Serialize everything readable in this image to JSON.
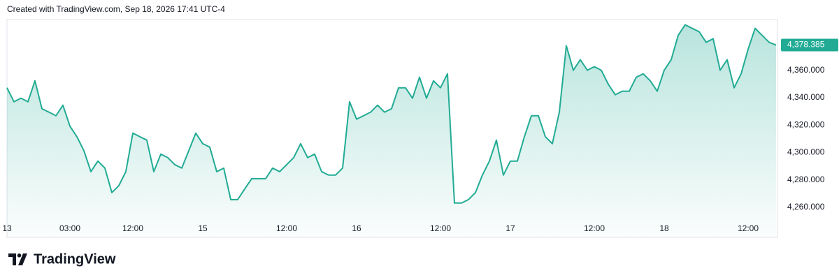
{
  "chart_data": {
    "type": "line",
    "title": "Created with TradingView.com, Sep 18, 2026 17:41 UTC-4",
    "categories": [
      "13",
      null,
      null,
      null,
      null,
      null,
      null,
      null,
      null,
      "03:00",
      null,
      null,
      null,
      null,
      null,
      null,
      null,
      null,
      "12:00",
      null,
      null,
      null,
      null,
      null,
      null,
      null,
      null,
      null,
      "15",
      null,
      null,
      null,
      null,
      null,
      null,
      null,
      null,
      null,
      null,
      null,
      "12:00",
      null,
      null,
      null,
      null,
      null,
      null,
      null,
      null,
      null,
      "16",
      null,
      null,
      null,
      null,
      null,
      null,
      null,
      null,
      null,
      null,
      null,
      "12:00",
      null,
      null,
      null,
      null,
      null,
      null,
      null,
      null,
      null,
      "17",
      null,
      null,
      null,
      null,
      null,
      null,
      null,
      null,
      null,
      null,
      null,
      "12:00",
      null,
      null,
      null,
      null,
      null,
      null,
      null,
      null,
      null,
      "18",
      null,
      null,
      null,
      null,
      null,
      null,
      null,
      null,
      null,
      null,
      null,
      "12:00",
      null,
      null,
      null,
      null
    ],
    "series": [
      {
        "color": "#22ab94",
        "values": [
          4347.2,
          4337.0,
          4339.6,
          4337.0,
          4352.3,
          4331.9,
          4329.4,
          4326.8,
          4334.5,
          4319.2,
          4311.5,
          4301.3,
          4286.0,
          4293.7,
          4288.6,
          4270.7,
          4275.8,
          4286.0,
          4314.1,
          4311.5,
          4309.0,
          4286.0,
          4298.8,
          4296.2,
          4291.1,
          4288.6,
          4301.3,
          4314.1,
          4306.4,
          4303.9,
          4286.0,
          4288.6,
          4265.6,
          4265.6,
          4273.3,
          4280.9,
          4280.9,
          4280.9,
          4288.6,
          4286.0,
          4291.1,
          4296.2,
          4306.4,
          4296.2,
          4298.8,
          4286.0,
          4283.5,
          4283.5,
          4288.6,
          4337.0,
          4324.3,
          4326.8,
          4329.4,
          4334.5,
          4329.4,
          4331.9,
          4347.2,
          4347.2,
          4339.6,
          4354.9,
          4339.6,
          4352.3,
          4347.2,
          4357.4,
          4263.1,
          4263.1,
          4265.6,
          4270.7,
          4283.5,
          4293.7,
          4309.0,
          4283.5,
          4293.7,
          4293.7,
          4311.5,
          4326.8,
          4326.8,
          4311.5,
          4306.4,
          4329.4,
          4377.9,
          4360.0,
          4367.7,
          4360.0,
          4362.6,
          4360.0,
          4349.8,
          4342.1,
          4344.7,
          4344.7,
          4354.9,
          4357.4,
          4352.3,
          4344.7,
          4360.0,
          4367.7,
          4385.5,
          4393.2,
          4390.6,
          4388.1,
          4380.4,
          4383.0,
          4360.0,
          4367.7,
          4347.2,
          4357.4,
          4375.3,
          4390.6,
          4385.5,
          4380.4,
          4378.385
        ],
        "value_labels": [
          null,
          null,
          null,
          null,
          null,
          null,
          null,
          null,
          null,
          null,
          null,
          null,
          null,
          null,
          null,
          null,
          null,
          null,
          null,
          null,
          null,
          null,
          null,
          null,
          null,
          null,
          null,
          null,
          null,
          null,
          null,
          null,
          null,
          null,
          null,
          null,
          null,
          null,
          null,
          null,
          null,
          null,
          null,
          null,
          null,
          null,
          null,
          null,
          null,
          null,
          null,
          null,
          null,
          null,
          null,
          null,
          null,
          null,
          null,
          null,
          null,
          null,
          null,
          null,
          null,
          null,
          null,
          null,
          null,
          null,
          null,
          null,
          null,
          null,
          null,
          null,
          null,
          null,
          null,
          null,
          null,
          null,
          null,
          null,
          null,
          null,
          null,
          null,
          null,
          null,
          null,
          null,
          null,
          null,
          null,
          null,
          null,
          null,
          null,
          null,
          null,
          null,
          null,
          null,
          null,
          null,
          null,
          null,
          null,
          null,
          "4,378.385"
        ]
      }
    ],
    "ylim": [
      4238,
      4397
    ],
    "yticks": [
      {
        "value": 4260,
        "label": "4,260.000"
      },
      {
        "value": 4280,
        "label": "4,280.000"
      },
      {
        "value": 4300,
        "label": "4,300.000"
      },
      {
        "value": 4320,
        "label": "4,320.000"
      },
      {
        "value": 4340,
        "label": "4,340.000"
      },
      {
        "value": 4360,
        "label": "4,360.000"
      }
    ],
    "grid": false
  },
  "footer": {
    "brand": "TradingView"
  }
}
